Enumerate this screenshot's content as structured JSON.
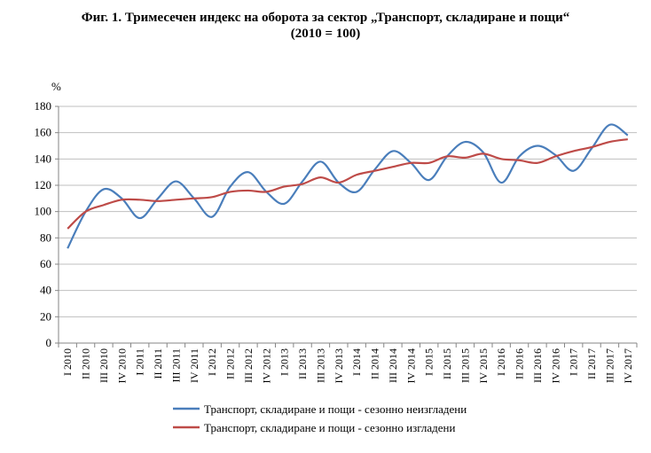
{
  "chart_data": {
    "type": "line",
    "title": "Фиг. 1. Тримесечен индекс на оборота за сектор „Транспорт, складиране и пощи“",
    "subtitle": "(2010 = 100)",
    "ylabel": "%",
    "xlabel": "",
    "ylim": [
      0,
      180
    ],
    "yticks": [
      0,
      20,
      40,
      60,
      80,
      100,
      120,
      140,
      160,
      180
    ],
    "grid": true,
    "legend_placement": "bottom",
    "smoothed": true,
    "categories": [
      "I 2010",
      "II 2010",
      "III 2010",
      "IV 2010",
      "I 2011",
      "II 2011",
      "III 2011",
      "IV 2011",
      "I 2012",
      "II 2012",
      "III 2012",
      "IV 2012",
      "I 2013",
      "II 2013",
      "III 2013",
      "IV 2013",
      "I 2014",
      "II 2014",
      "III 2014",
      "IV 2014",
      "I 2015",
      "II 2015",
      "III 2015",
      "IV 2015",
      "I 2016",
      "II 2016",
      "III 2016",
      "IV 2016",
      "I 2017",
      "II 2017",
      "III 2017",
      "IV 2017"
    ],
    "series": [
      {
        "name": "Транспорт, складиране и пощи - сезонно неизгладени",
        "color": "#4a7ebb",
        "values": [
          72,
          100,
          117,
          110,
          95,
          110,
          123,
          110,
          96,
          119,
          130,
          115,
          106,
          123,
          138,
          122,
          115,
          132,
          146,
          137,
          124,
          142,
          153,
          145,
          122,
          142,
          150,
          143,
          131,
          148,
          166,
          158
        ]
      },
      {
        "name": "Транспорт, складиране и пощи - сезонно изгладени",
        "color": "#be4b48",
        "values": [
          87,
          100,
          105,
          109,
          109,
          108,
          109,
          110,
          111,
          115,
          116,
          115,
          119,
          121,
          126,
          122,
          128,
          131,
          134,
          137,
          137,
          142,
          141,
          144,
          140,
          139,
          137,
          142,
          146,
          149,
          153,
          155
        ]
      }
    ]
  }
}
